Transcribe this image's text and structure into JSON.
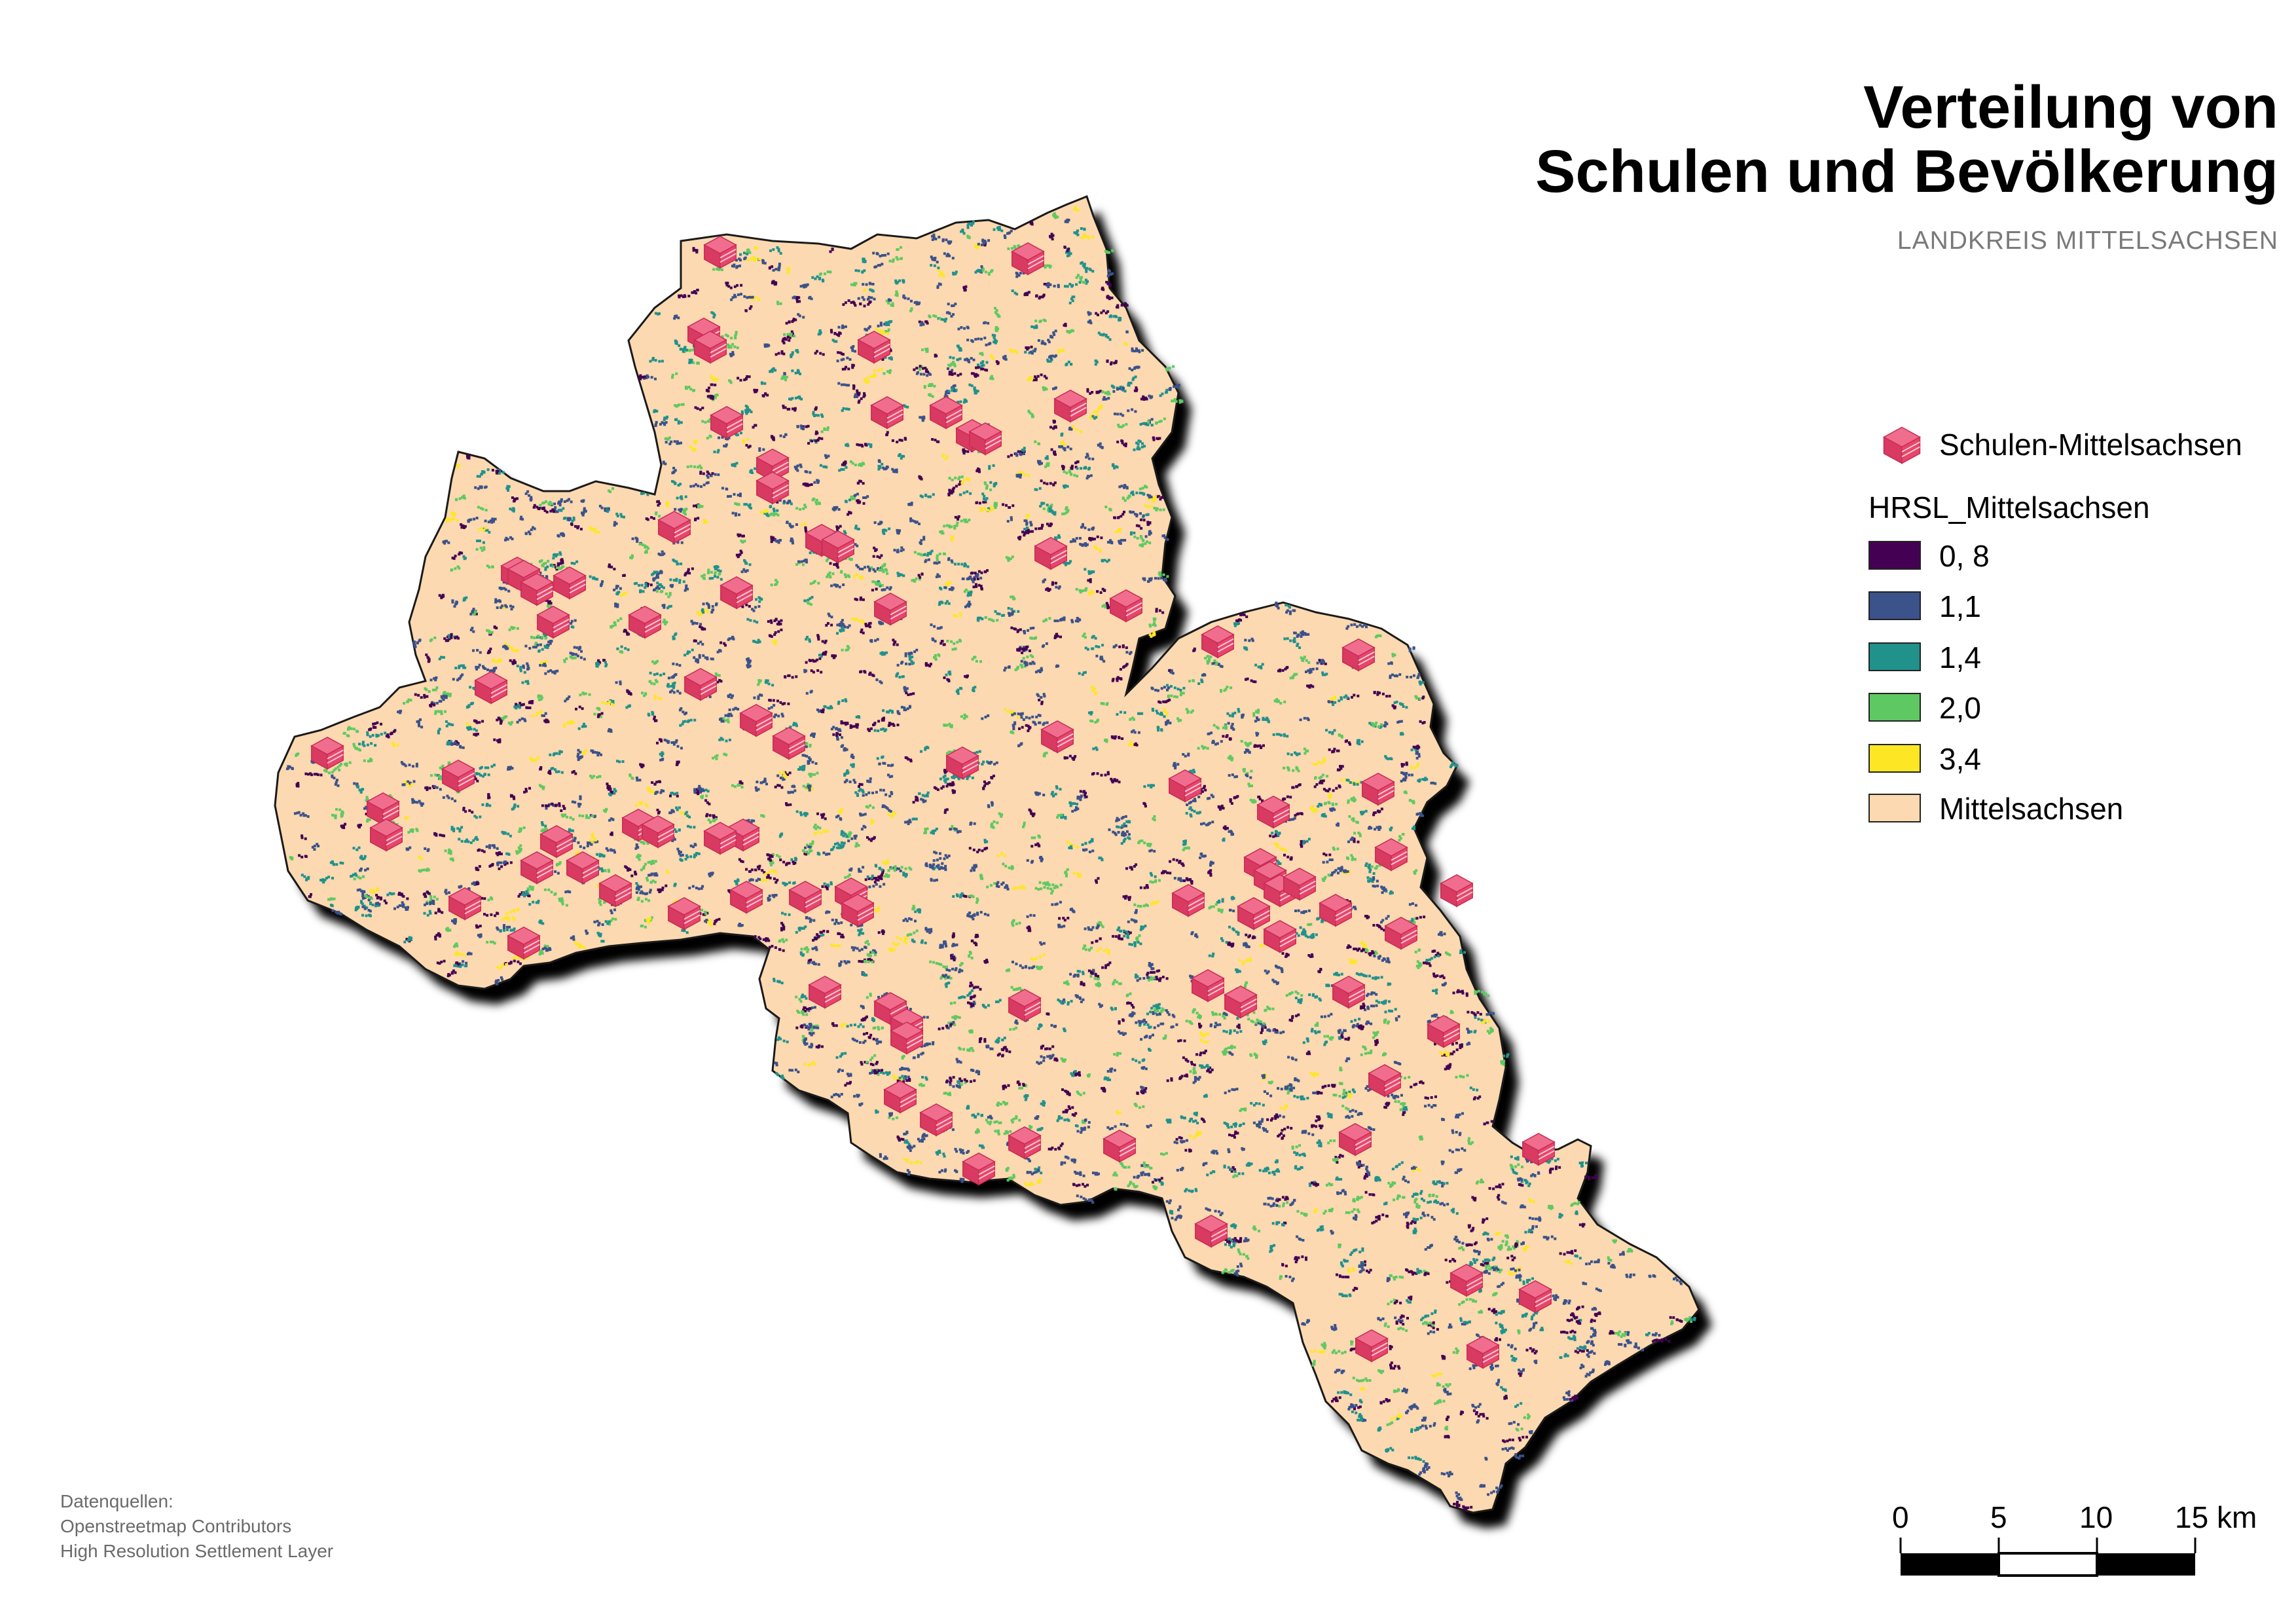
{
  "title": {
    "line1": "Verteilung von",
    "line2": "Schulen und Bevölkerung",
    "subtitle": "LANDKREIS MITTELSACHSEN"
  },
  "legend": {
    "schools_label": "Schulen-Mittelsachsen",
    "raster_heading": "HRSL_Mittelsachsen",
    "classes": [
      {
        "label": "0, 8",
        "color": "#440154"
      },
      {
        "label": "1,1",
        "color": "#3b528b"
      },
      {
        "label": "1,4",
        "color": "#21918c"
      },
      {
        "label": "2,0",
        "color": "#5ec962"
      },
      {
        "label": "3,4",
        "color": "#fde725"
      }
    ],
    "district_label": "Mittelsachsen",
    "district_color": "#fcd9b0",
    "school_color": "#e8456b"
  },
  "scale_bar": {
    "labels": [
      "0",
      "5",
      "10",
      "15 km"
    ]
  },
  "sources": {
    "heading": "Datenquellen:",
    "lines": [
      "Openstreetmap Contributors",
      "High Resolution Settlement Layer"
    ]
  }
}
